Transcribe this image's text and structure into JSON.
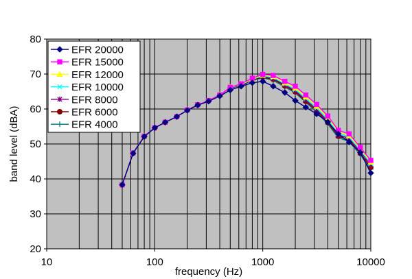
{
  "chart_data": {
    "type": "line",
    "xlabel": "frequency (Hz)",
    "ylabel": "band level (dBA)",
    "xscale": "log",
    "xlim": [
      10,
      10000
    ],
    "ylim": [
      20,
      80
    ],
    "x_ticks": [
      "10",
      "100",
      "1000",
      "10000"
    ],
    "y_ticks": [
      "20",
      "30",
      "40",
      "50",
      "60",
      "70",
      "80"
    ],
    "grid": "vertical log gridlines, horizontal at 10 dBA",
    "legend_position": "top-left",
    "plot_background": "#c0c0c0",
    "x": [
      50,
      63,
      80,
      100,
      125,
      160,
      200,
      250,
      315,
      400,
      500,
      630,
      800,
      1000,
      1250,
      1600,
      2000,
      2500,
      3150,
      4000,
      5000,
      6300,
      8000,
      10000
    ],
    "series": [
      {
        "name": "EFR 20000",
        "color": "#000080",
        "marker": "diamond",
        "values": [
          38.3,
          47.3,
          52.1,
          54.6,
          56.2,
          57.8,
          59.6,
          61.1,
          62.2,
          63.7,
          65.4,
          66.5,
          67.5,
          67.9,
          66.5,
          64.7,
          62.4,
          60.5,
          58.6,
          56.3,
          52.9,
          50.5,
          47.6,
          41.7
        ]
      },
      {
        "name": "EFR 15000",
        "color": "#ff00ff",
        "marker": "square",
        "values": [
          38.3,
          47.4,
          52.2,
          54.6,
          56.2,
          57.8,
          59.7,
          61.2,
          62.4,
          64.0,
          66.2,
          67.2,
          68.8,
          69.9,
          69.6,
          67.9,
          66.5,
          64.0,
          61.3,
          58.0,
          53.9,
          52.9,
          49.0,
          45.3
        ]
      },
      {
        "name": "EFR 12000",
        "color": "#ffff00",
        "marker": "triangle",
        "values": [
          38.3,
          47.4,
          52.2,
          54.6,
          56.2,
          57.8,
          59.7,
          61.2,
          62.4,
          64.0,
          66.2,
          67.1,
          68.6,
          69.7,
          69.3,
          67.5,
          66.0,
          63.5,
          60.8,
          57.5,
          53.5,
          52.4,
          48.6,
          44.8
        ]
      },
      {
        "name": "EFR 10000",
        "color": "#00ffff",
        "marker": "x",
        "values": [
          38.3,
          47.4,
          52.2,
          54.6,
          56.2,
          57.8,
          59.7,
          61.2,
          62.4,
          64.0,
          66.1,
          67.0,
          68.5,
          69.5,
          69.0,
          67.2,
          65.6,
          63.0,
          60.3,
          57.0,
          53.0,
          52.0,
          48.2,
          44.4
        ]
      },
      {
        "name": "EFR 8000",
        "color": "#800080",
        "marker": "star",
        "values": [
          38.3,
          47.4,
          52.2,
          54.6,
          56.2,
          57.8,
          59.7,
          61.2,
          62.4,
          64.0,
          66.1,
          66.9,
          68.4,
          69.3,
          68.8,
          66.9,
          65.2,
          62.6,
          59.9,
          56.5,
          52.6,
          51.6,
          47.8,
          44.0
        ]
      },
      {
        "name": "EFR 6000",
        "color": "#800000",
        "marker": "circle",
        "values": [
          38.3,
          47.4,
          52.2,
          54.6,
          56.2,
          57.8,
          59.7,
          61.2,
          62.4,
          64.0,
          66.0,
          66.8,
          68.3,
          69.1,
          68.5,
          66.6,
          64.9,
          62.2,
          59.5,
          56.1,
          52.2,
          51.1,
          47.3,
          43.3
        ]
      },
      {
        "name": "EFR 4000",
        "color": "#008080",
        "marker": "plus",
        "values": [
          38.3,
          47.4,
          52.2,
          54.6,
          56.2,
          57.8,
          59.7,
          61.2,
          62.4,
          64.0,
          66.0,
          66.7,
          68.2,
          68.9,
          68.2,
          66.3,
          64.6,
          61.9,
          59.1,
          55.7,
          51.8,
          50.7,
          46.9,
          42.8
        ]
      }
    ]
  }
}
